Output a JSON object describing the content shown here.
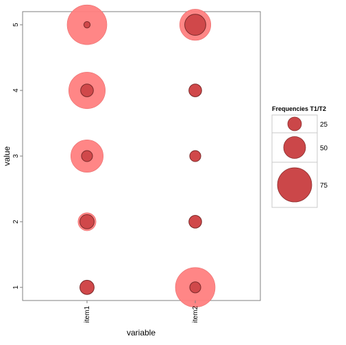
{
  "chart_data": {
    "type": "scatter",
    "xlabel": "variable",
    "ylabel": "value",
    "categories": [
      "item1",
      "item2"
    ],
    "y_ticks": [
      1,
      2,
      3,
      4,
      5
    ],
    "ylim": [
      0.8,
      5.2
    ],
    "grid": false,
    "legend_position": "right",
    "size_legend": {
      "title": "Frequencies  T1/T2",
      "entries": [
        {
          "label": "25",
          "value": 25
        },
        {
          "label": "50",
          "value": 50
        },
        {
          "label": "75",
          "value": 75
        }
      ]
    },
    "series": [
      {
        "role": "outer",
        "color": "#ff7f7f",
        "points": [
          {
            "x": "item1",
            "y": 1,
            "size": 10
          },
          {
            "x": "item1",
            "y": 2,
            "size": 16
          },
          {
            "x": "item1",
            "y": 3,
            "size": 52
          },
          {
            "x": "item1",
            "y": 4,
            "size": 66
          },
          {
            "x": "item1",
            "y": 5,
            "size": 78
          },
          {
            "x": "item2",
            "y": 1,
            "size": 78
          },
          {
            "x": "item2",
            "y": 2,
            "size": 8
          },
          {
            "x": "item2",
            "y": 3,
            "size": 6
          },
          {
            "x": "item2",
            "y": 4,
            "size": 8
          },
          {
            "x": "item2",
            "y": 5,
            "size": 48
          }
        ]
      },
      {
        "role": "inner",
        "color": "#c83d3f",
        "points": [
          {
            "x": "item1",
            "y": 1,
            "size": 10
          },
          {
            "x": "item1",
            "y": 2,
            "size": 10
          },
          {
            "x": "item1",
            "y": 3,
            "size": 6
          },
          {
            "x": "item1",
            "y": 4,
            "size": 8
          },
          {
            "x": "item1",
            "y": 5,
            "size": 2
          },
          {
            "x": "item2",
            "y": 1,
            "size": 6
          },
          {
            "x": "item2",
            "y": 2,
            "size": 8
          },
          {
            "x": "item2",
            "y": 3,
            "size": 6
          },
          {
            "x": "item2",
            "y": 4,
            "size": 8
          },
          {
            "x": "item2",
            "y": 5,
            "size": 22
          }
        ]
      }
    ]
  }
}
